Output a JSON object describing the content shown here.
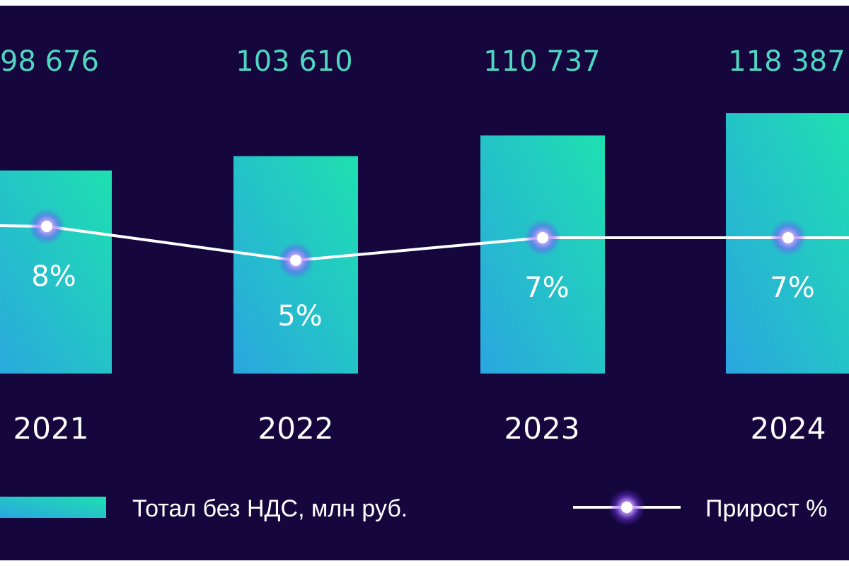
{
  "chart_data": {
    "type": "bar",
    "categories": [
      "2021",
      "2022",
      "2023",
      "2024"
    ],
    "value_labels": [
      "98 676",
      "103 610",
      "110 737",
      "118 387"
    ],
    "series": [
      {
        "name": "Тотал без НДС, млн руб.",
        "type": "bar",
        "values": [
          98676,
          103610,
          110737,
          118387
        ]
      },
      {
        "name": "Прирост %",
        "type": "line",
        "values": [
          8,
          5,
          7,
          7
        ],
        "labels": [
          "8%",
          "5%",
          "7%",
          "7%"
        ]
      }
    ],
    "legend": {
      "bar_label": "Тотал без НДС, млн руб.",
      "line_label": "Прирост %"
    },
    "legend_position": "bottom",
    "grid": false
  },
  "colors": {
    "background": "#15063d",
    "bar_top": "#1ee0b0",
    "bar_bottom": "#2aa6e0",
    "value_text": "#4fd6c0",
    "line": "#ffffff",
    "glow": "#a770ff"
  }
}
